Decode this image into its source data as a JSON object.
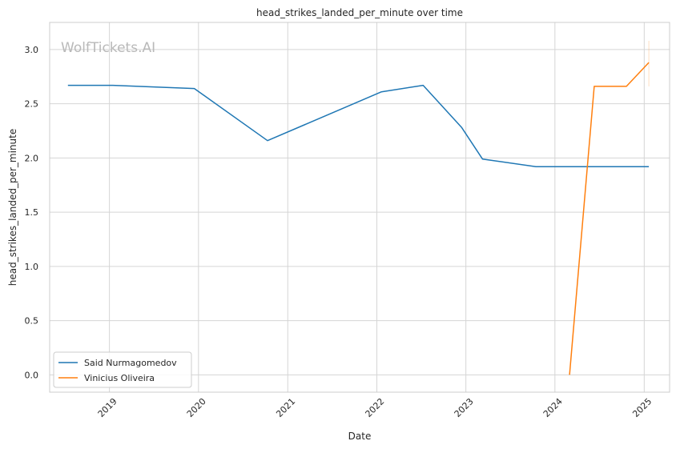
{
  "chart_data": {
    "type": "line",
    "title": "head_strikes_landed_per_minute over time",
    "xlabel": "Date",
    "ylabel": "head_strikes_landed_per_minute",
    "watermark": "WolfTickets.AI",
    "x_ticks": [
      "2019",
      "2020",
      "2021",
      "2022",
      "2023",
      "2024",
      "2025"
    ],
    "y_ticks": [
      "0.0",
      "0.5",
      "1.0",
      "1.5",
      "2.0",
      "2.5",
      "3.0"
    ],
    "xlim": [
      "2018-05-01",
      "2025-04-15"
    ],
    "ylim": [
      -0.16,
      3.25
    ],
    "grid": true,
    "legend_position": "lower-left",
    "series": [
      {
        "name": "Said Nurmagomedov",
        "color": "#1f77b4",
        "points": [
          [
            "2018-07-15",
            2.67
          ],
          [
            "2019-01-15",
            2.67
          ],
          [
            "2019-12-15",
            2.64
          ],
          [
            "2020-10-10",
            2.16
          ],
          [
            "2022-01-20",
            2.61
          ],
          [
            "2022-07-10",
            2.67
          ],
          [
            "2022-12-15",
            2.28
          ],
          [
            "2023-03-10",
            1.99
          ],
          [
            "2023-10-15",
            1.92
          ],
          [
            "2024-07-01",
            1.92
          ],
          [
            "2024-10-20",
            1.92
          ],
          [
            "2025-01-20",
            1.92
          ]
        ]
      },
      {
        "name": "Vinicius Oliveira",
        "color": "#ff7f0e",
        "points": [
          [
            "2024-03-01",
            0.0
          ],
          [
            "2024-06-10",
            2.66
          ],
          [
            "2024-10-20",
            2.66
          ],
          [
            "2025-01-20",
            2.88
          ]
        ]
      }
    ]
  }
}
